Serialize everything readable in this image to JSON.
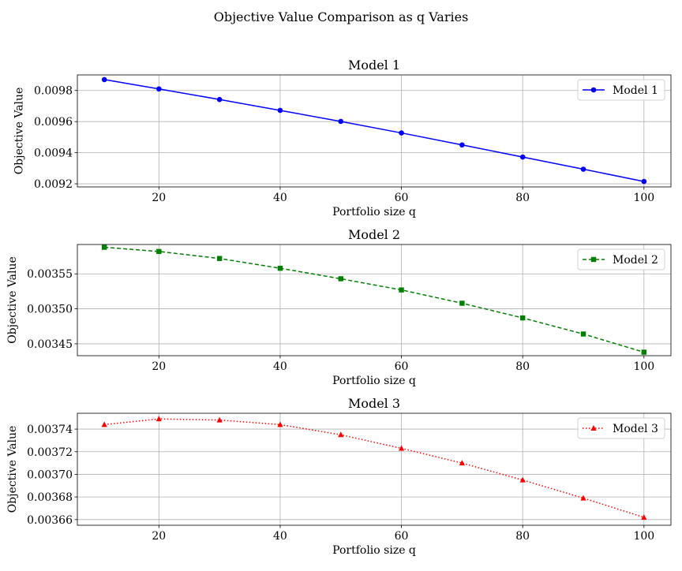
{
  "figure": {
    "suptitle": "Objective Value Comparison as q Varies"
  },
  "chart_data": [
    {
      "type": "line",
      "title": "Model 1",
      "xlabel": "Portfolio size q",
      "ylabel": "Objective Value",
      "x": [
        11,
        20,
        30,
        40,
        50,
        60,
        70,
        80,
        90,
        100
      ],
      "xlim": [
        6.55,
        104.45
      ],
      "ylim": [
        0.00918,
        0.0099
      ],
      "xticks": [
        20,
        40,
        60,
        80,
        100
      ],
      "xtick_labels": [
        "20",
        "40",
        "60",
        "80",
        "100"
      ],
      "yticks": [
        0.0092,
        0.0094,
        0.0096,
        0.0098
      ],
      "ytick_labels": [
        "0.0092",
        "0.0094",
        "0.0096",
        "0.0098"
      ],
      "grid": true,
      "legend_position": "upper-right",
      "series": [
        {
          "name": "Model 1",
          "color": "#0000ff",
          "line_style": "solid",
          "marker": "circle",
          "values": [
            0.00987,
            0.00981,
            0.009742,
            0.009672,
            0.009601,
            0.009527,
            0.00945,
            0.009372,
            0.009294,
            0.009215
          ]
        }
      ]
    },
    {
      "type": "line",
      "title": "Model 2",
      "xlabel": "Portfolio size q",
      "ylabel": "Objective Value",
      "x": [
        11,
        20,
        30,
        40,
        50,
        60,
        70,
        80,
        90,
        100
      ],
      "xlim": [
        6.55,
        104.45
      ],
      "ylim": [
        0.003433,
        0.003592
      ],
      "xticks": [
        20,
        40,
        60,
        80,
        100
      ],
      "xtick_labels": [
        "20",
        "40",
        "60",
        "80",
        "100"
      ],
      "yticks": [
        0.00345,
        0.0035,
        0.00355
      ],
      "ytick_labels": [
        "0.00345",
        "0.00350",
        "0.00355"
      ],
      "grid": true,
      "legend_position": "upper-right",
      "series": [
        {
          "name": "Model 2",
          "color": "#008000",
          "line_style": "dashed",
          "marker": "square",
          "values": [
            0.003588,
            0.003582,
            0.003572,
            0.003558,
            0.003543,
            0.003527,
            0.003508,
            0.003487,
            0.003464,
            0.003438
          ]
        }
      ]
    },
    {
      "type": "line",
      "title": "Model 3",
      "xlabel": "Portfolio size q",
      "ylabel": "Objective Value",
      "x": [
        11,
        20,
        30,
        40,
        50,
        60,
        70,
        80,
        90,
        100
      ],
      "xlim": [
        6.55,
        104.45
      ],
      "ylim": [
        0.003655,
        0.003754
      ],
      "xticks": [
        20,
        40,
        60,
        80,
        100
      ],
      "xtick_labels": [
        "20",
        "40",
        "60",
        "80",
        "100"
      ],
      "yticks": [
        0.00366,
        0.00368,
        0.0037,
        0.00372,
        0.00374
      ],
      "ytick_labels": [
        "0.00366",
        "0.00368",
        "0.00370",
        "0.00372",
        "0.00374"
      ],
      "grid": true,
      "legend_position": "upper-right",
      "series": [
        {
          "name": "Model 3",
          "color": "#ff0000",
          "line_style": "dotted",
          "marker": "triangle",
          "values": [
            0.003744,
            0.003749,
            0.003748,
            0.003744,
            0.003735,
            0.003723,
            0.00371,
            0.003695,
            0.003679,
            0.003662
          ]
        }
      ]
    }
  ]
}
